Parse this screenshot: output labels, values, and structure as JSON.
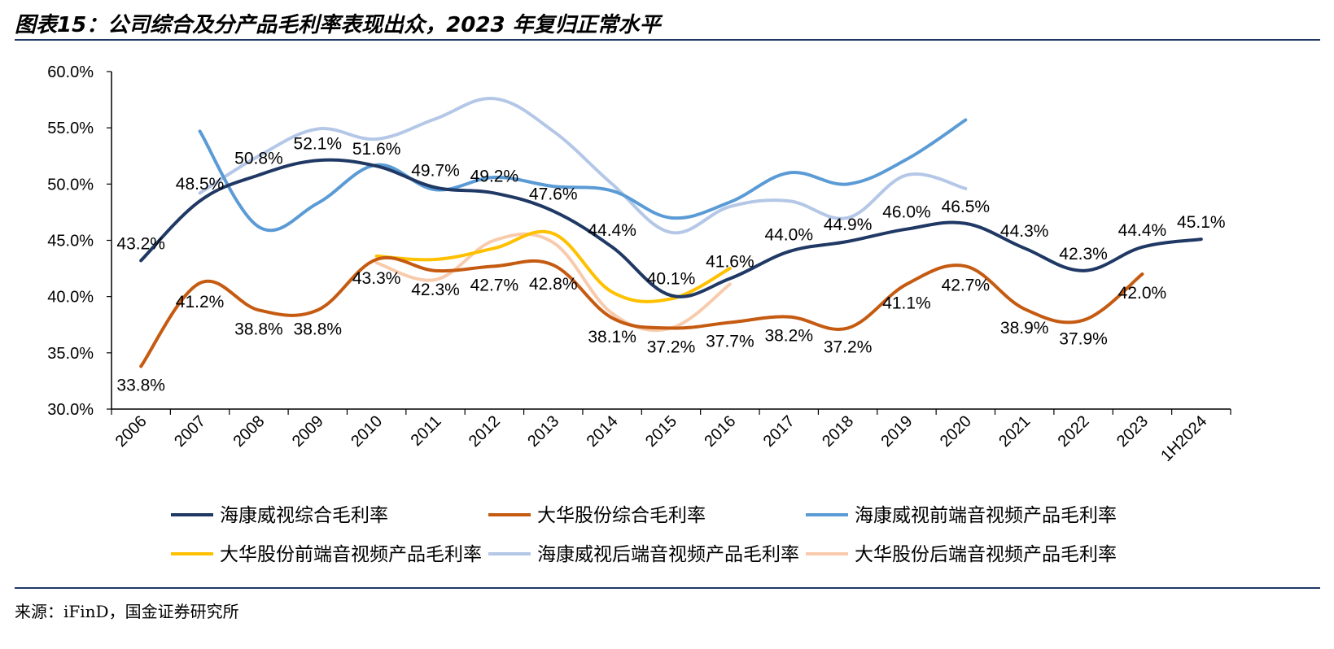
{
  "title": "图表15：公司综合及分产品毛利率表现出众，2023 年复归正常水平",
  "source": "来源：iFinD，国金证券研究所",
  "chart_data": {
    "type": "line",
    "categories": [
      "2006",
      "2007",
      "2008",
      "2009",
      "2010",
      "2011",
      "2012",
      "2013",
      "2014",
      "2015",
      "2016",
      "2017",
      "2018",
      "2019",
      "2020",
      "2021",
      "2022",
      "2023",
      "1H2024"
    ],
    "y_ticks": [
      "30.0%",
      "35.0%",
      "40.0%",
      "45.0%",
      "50.0%",
      "55.0%",
      "60.0%"
    ],
    "ylim": [
      30,
      60
    ],
    "grid": false,
    "legend_position": "bottom",
    "series": [
      {
        "name": "海康威视综合毛利率",
        "color": "#1f3864",
        "labeled": true,
        "label_dy": -14,
        "values": [
          43.2,
          48.5,
          50.8,
          52.1,
          51.6,
          49.7,
          49.2,
          47.6,
          44.4,
          40.1,
          41.6,
          44.0,
          44.9,
          46.0,
          46.5,
          44.3,
          42.3,
          44.4,
          45.1
        ],
        "labels": [
          "43.2%",
          "48.5%",
          "50.8%",
          "52.1%",
          "51.6%",
          "49.7%",
          "49.2%",
          "47.6%",
          "44.4%",
          "40.1%",
          "41.6%",
          "44.0%",
          "44.9%",
          "46.0%",
          "46.5%",
          "44.3%",
          "42.3%",
          "44.4%",
          "45.1%"
        ]
      },
      {
        "name": "大华股份综合毛利率",
        "color": "#c55a11",
        "labeled": true,
        "label_dy": 30,
        "values": [
          33.8,
          41.2,
          38.8,
          38.8,
          43.3,
          42.3,
          42.7,
          42.8,
          38.1,
          37.2,
          37.7,
          38.2,
          37.2,
          41.1,
          42.7,
          38.9,
          37.9,
          42.0,
          null
        ],
        "labels": [
          "33.8%",
          "41.2%",
          "38.8%",
          "38.8%",
          "43.3%",
          "42.3%",
          "42.7%",
          "42.8%",
          "38.1%",
          "37.2%",
          "37.7%",
          "38.2%",
          "37.2%",
          "41.1%",
          "42.7%",
          "38.9%",
          "37.9%",
          "42.0%",
          ""
        ]
      },
      {
        "name": "海康威视前端音视频产品毛利率",
        "color": "#5b9bd5",
        "labeled": false,
        "values": [
          null,
          54.7,
          46.2,
          48.3,
          51.7,
          49.5,
          50.6,
          49.8,
          49.4,
          47.0,
          48.4,
          51.0,
          50.0,
          52.2,
          55.7,
          null,
          null,
          null,
          null
        ]
      },
      {
        "name": "大华股份前端音视频产品毛利率",
        "color": "#ffc000",
        "labeled": false,
        "values": [
          null,
          null,
          null,
          null,
          43.6,
          43.3,
          44.3,
          45.6,
          40.4,
          39.8,
          42.5,
          null,
          null,
          null,
          null,
          null,
          null,
          null,
          null
        ]
      },
      {
        "name": "海康威视后端音视频产品毛利率",
        "color": "#b4c7e7",
        "labeled": false,
        "values": [
          null,
          49.2,
          52.5,
          54.9,
          54.0,
          55.8,
          57.6,
          54.7,
          50.0,
          45.7,
          48.0,
          48.5,
          47.0,
          50.8,
          49.6,
          null,
          null,
          null,
          null
        ]
      },
      {
        "name": "大华股份后端音视频产品毛利率",
        "color": "#f8cbad",
        "labeled": false,
        "values": [
          null,
          null,
          null,
          null,
          43.0,
          41.5,
          45.0,
          44.8,
          38.5,
          37.2,
          41.1,
          null,
          null,
          null,
          null,
          null,
          null,
          null,
          null
        ]
      }
    ]
  }
}
